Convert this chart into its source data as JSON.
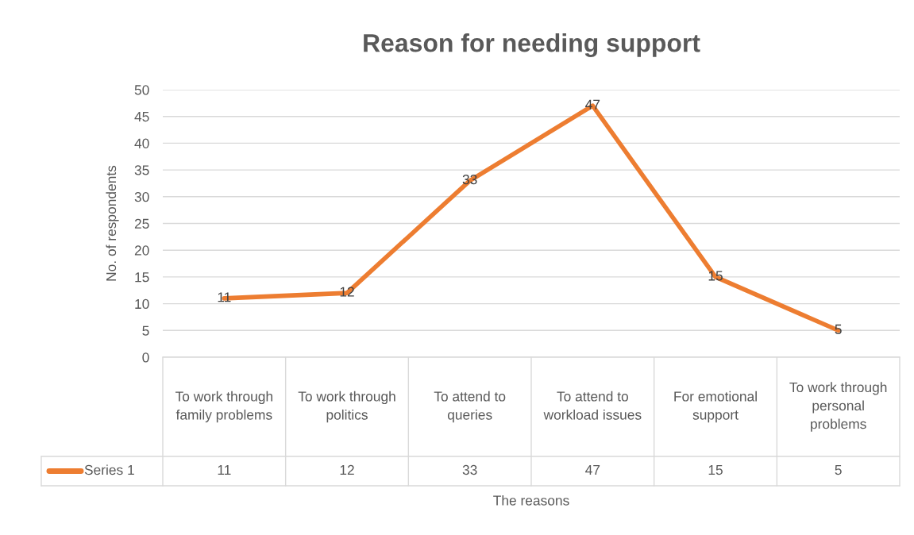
{
  "chart_data": {
    "type": "line",
    "title": "Reason for needing support",
    "xlabel": "The reasons",
    "ylabel": "No. of respondents",
    "categories": [
      "To work through family problems",
      "To work through politics",
      "To attend to queries",
      "To attend to workload issues",
      "For emotional support",
      "To work through personal problems"
    ],
    "series": [
      {
        "name": "Series 1",
        "color": "#ed7d31",
        "values": [
          11,
          12,
          33,
          47,
          15,
          5
        ],
        "value_labels": [
          "11",
          "12",
          "33",
          "47",
          "15",
          "5"
        ]
      }
    ],
    "ylim": [
      0,
      50
    ],
    "yticks": [
      0,
      5,
      10,
      15,
      20,
      25,
      30,
      35,
      40,
      45,
      50
    ],
    "annotations": [
      "11",
      "12",
      "33",
      "47",
      "15",
      "5"
    ],
    "grid": "y",
    "legend": "bottom",
    "marker": "none",
    "line_style": "solid"
  }
}
